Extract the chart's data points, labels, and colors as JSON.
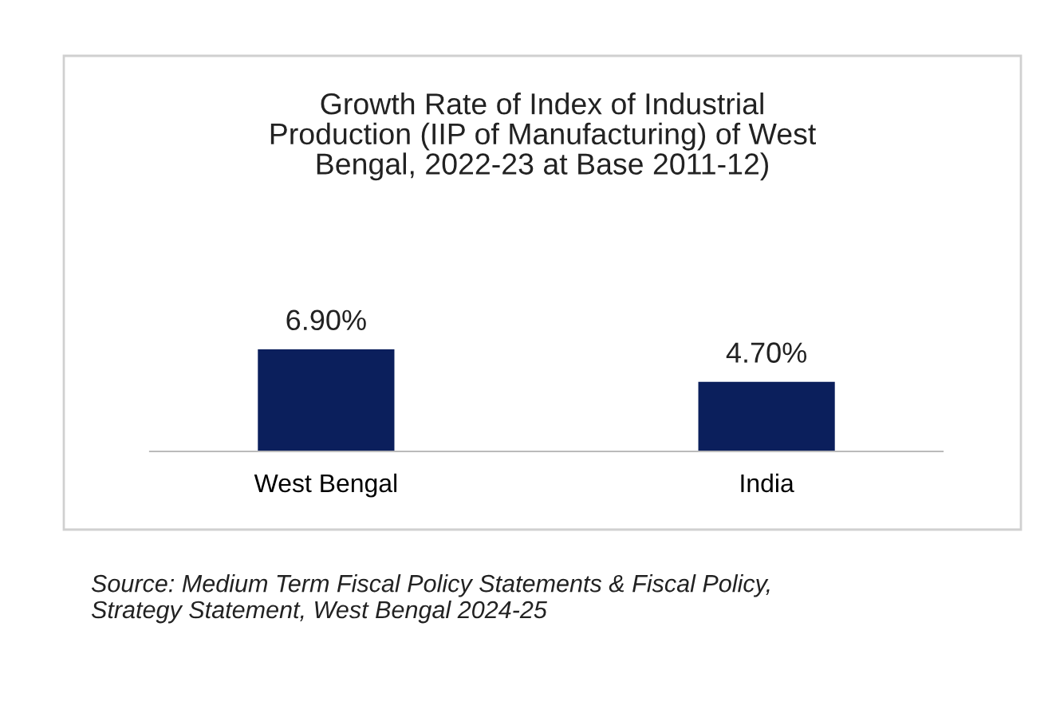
{
  "chart_data": {
    "type": "bar",
    "title": "Growth Rate of Index of Industrial\nProduction (IIP of Manufacturing) of West\nBengal, 2022-23 at Base 2011-12)",
    "categories": [
      "West Bengal",
      "India"
    ],
    "values": [
      6.9,
      4.7
    ],
    "color": "#0b1f5c",
    "value_labels": [
      "6.90%",
      "4.70%"
    ],
    "annotations": [
      "Source: Medium Term Fiscal Policy Statements & Fiscal Policy,\nStrategy Statement, West Bengal 2024-25"
    ]
  }
}
